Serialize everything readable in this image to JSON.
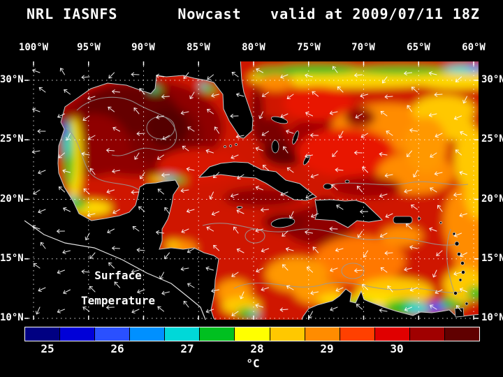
{
  "title": {
    "product": "NRL IASNFS",
    "mode": "Nowcast",
    "valid": "valid at 2009/07/11 18Z"
  },
  "axes": {
    "lon_labels": [
      "100°W",
      "95°W",
      "90°W",
      "85°W",
      "80°W",
      "75°W",
      "70°W",
      "65°W",
      "60°W"
    ],
    "lat_labels": [
      "30°N",
      "25°N",
      "20°N",
      "15°N",
      "10°N"
    ]
  },
  "map": {
    "overlay_line1": "Surface",
    "overlay_line2": "Temperature"
  },
  "colorbar": {
    "ticks": [
      "25",
      "26",
      "27",
      "28",
      "29",
      "30"
    ],
    "unit": "°C",
    "colors": [
      "#000082",
      "#0000d8",
      "#2a50ff",
      "#0090ff",
      "#00d8d8",
      "#00c020",
      "#ffff00",
      "#ffc800",
      "#ff8c00",
      "#ff4000",
      "#e00000",
      "#a00000",
      "#600000"
    ]
  },
  "colors": {
    "background": "#000000",
    "text": "#ffffff",
    "grid": "#ffffff",
    "coastline": "#c8c8c8",
    "contour": "#9a9a9a",
    "ocean_base": "#cf1200"
  }
}
